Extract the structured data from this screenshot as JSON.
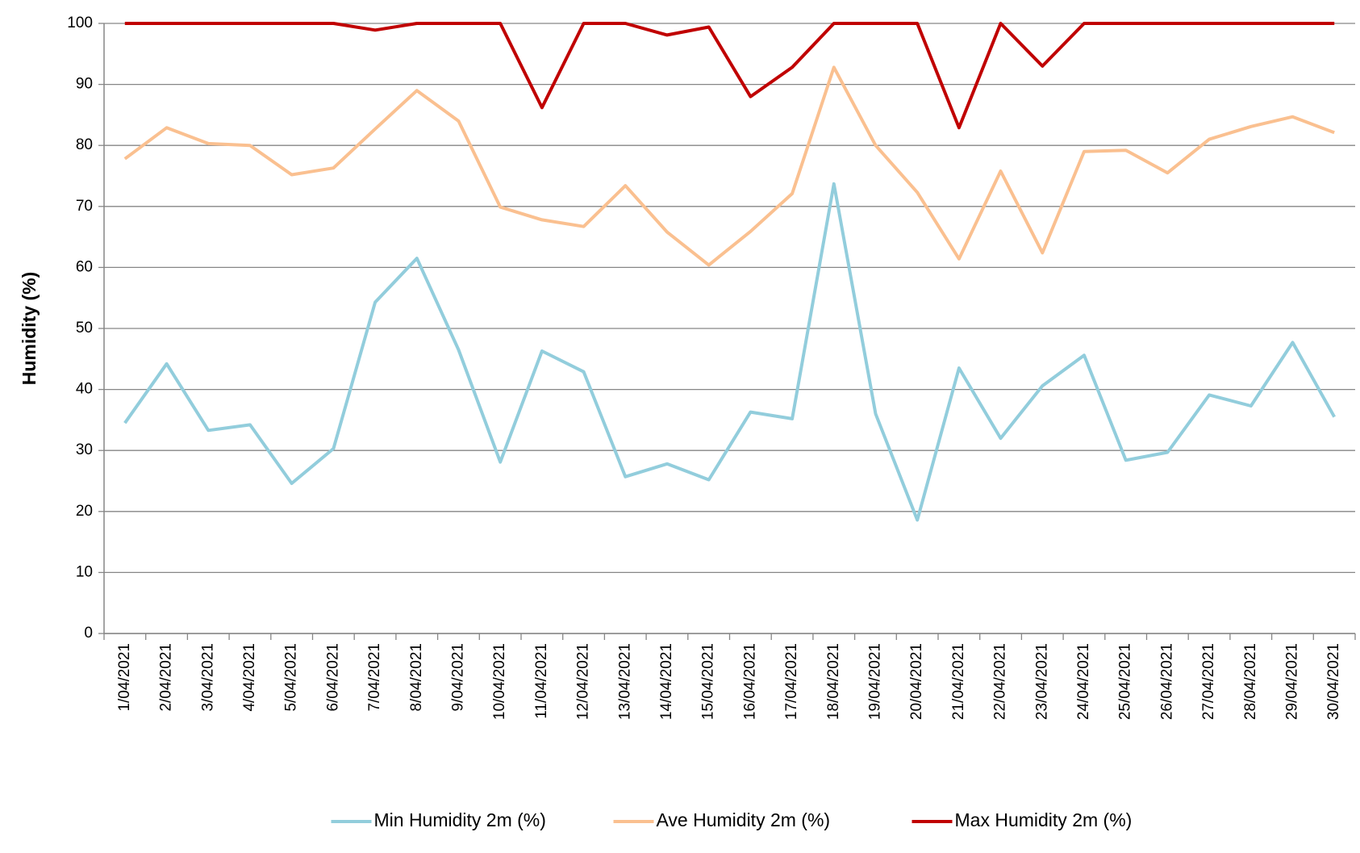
{
  "chart_data": {
    "type": "line",
    "y_label": "Humidity (%)",
    "categories": [
      "1/04/2021",
      "2/04/2021",
      "3/04/2021",
      "4/04/2021",
      "5/04/2021",
      "6/04/2021",
      "7/04/2021",
      "8/04/2021",
      "9/04/2021",
      "10/04/2021",
      "11/04/2021",
      "12/04/2021",
      "13/04/2021",
      "14/04/2021",
      "15/04/2021",
      "16/04/2021",
      "17/04/2021",
      "18/04/2021",
      "19/04/2021",
      "20/04/2021",
      "21/04/2021",
      "22/04/2021",
      "23/04/2021",
      "24/04/2021",
      "25/04/2021",
      "26/04/2021",
      "27/04/2021",
      "28/04/2021",
      "29/04/2021",
      "30/04/2021"
    ],
    "series": [
      {
        "name": "Min Humidity 2m (%)",
        "color": "#92cddc",
        "values": [
          34.5,
          44.2,
          33.3,
          34.2,
          24.6,
          30.3,
          54.3,
          61.5,
          46.5,
          28.1,
          46.3,
          42.9,
          25.7,
          27.8,
          25.2,
          36.3,
          35.2,
          73.7,
          36.0,
          18.6,
          43.5,
          32.0,
          40.6,
          45.6,
          28.4,
          29.7,
          39.1,
          37.3,
          47.7,
          35.5
        ]
      },
      {
        "name": "Ave Humidity 2m (%)",
        "color": "#fac090",
        "values": [
          77.8,
          82.9,
          80.3,
          80.0,
          75.2,
          76.3,
          82.7,
          89.0,
          84.0,
          69.9,
          67.8,
          66.7,
          73.4,
          65.8,
          60.4,
          65.9,
          72.1,
          92.8,
          80.0,
          72.3,
          61.4,
          75.8,
          62.4,
          79.0,
          79.2,
          75.5,
          81.0,
          83.1,
          84.7,
          82.1
        ]
      },
      {
        "name": "Max Humidity 2m (%)",
        "color": "#c00000",
        "values": [
          100,
          100,
          100,
          100,
          100,
          100,
          98.9,
          100,
          100,
          100,
          86.2,
          100,
          100,
          98.1,
          99.4,
          88.0,
          92.8,
          100,
          100,
          100,
          82.9,
          100,
          93.0,
          100,
          100,
          100,
          100,
          100,
          100,
          100
        ]
      }
    ],
    "ylim": [
      0,
      100
    ],
    "yticks": [
      0,
      10,
      20,
      30,
      40,
      50,
      60,
      70,
      80,
      90,
      100
    ],
    "grid": true,
    "legend": "bottom"
  }
}
